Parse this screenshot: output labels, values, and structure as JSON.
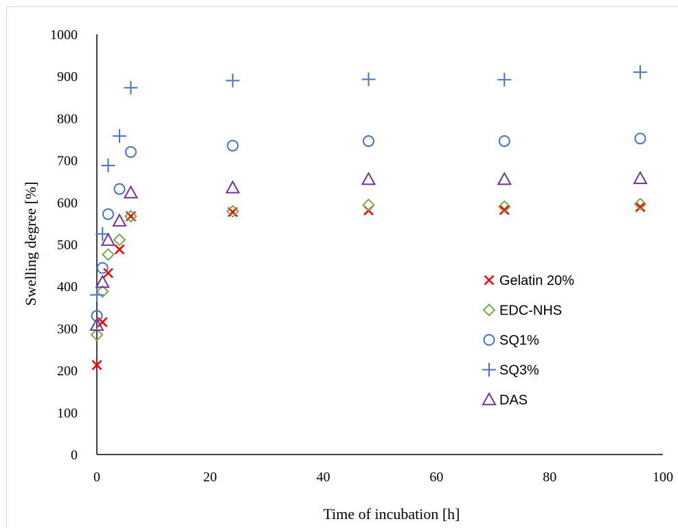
{
  "chart_data": {
    "type": "scatter",
    "title": "",
    "xlabel": "Time of incubation [h]",
    "ylabel": "Swelling degree [%]",
    "xlim": [
      0,
      100
    ],
    "ylim": [
      0,
      1000
    ],
    "x_ticks": [
      0,
      20,
      40,
      60,
      80,
      100
    ],
    "y_ticks": [
      0,
      100,
      200,
      300,
      400,
      500,
      600,
      700,
      800,
      900,
      1000
    ],
    "grid": false,
    "legend_position": "right",
    "series": [
      {
        "name": "Gelatin 20%",
        "marker": "x-cross",
        "color": "#ff0000",
        "points": [
          [
            0,
            213
          ],
          [
            1,
            315
          ],
          [
            2,
            432
          ],
          [
            4,
            488
          ],
          [
            6,
            567
          ],
          [
            24,
            577
          ],
          [
            48,
            581
          ],
          [
            72,
            582
          ],
          [
            96,
            589
          ]
        ]
      },
      {
        "name": "EDC-NHS",
        "marker": "diamond",
        "color": "#70ad47",
        "points": [
          [
            0,
            285
          ],
          [
            1,
            388
          ],
          [
            2,
            476
          ],
          [
            4,
            511
          ],
          [
            6,
            567
          ],
          [
            24,
            579
          ],
          [
            48,
            594
          ],
          [
            72,
            590
          ],
          [
            96,
            596
          ]
        ]
      },
      {
        "name": "SQ1%",
        "marker": "circle",
        "color": "#4472c4",
        "points": [
          [
            0,
            330
          ],
          [
            1,
            444
          ],
          [
            2,
            572
          ],
          [
            4,
            632
          ],
          [
            6,
            720
          ],
          [
            24,
            735
          ],
          [
            48,
            746
          ],
          [
            72,
            746
          ],
          [
            96,
            752
          ]
        ]
      },
      {
        "name": "SQ3%",
        "marker": "plus",
        "color": "#4472c4",
        "points": [
          [
            0,
            380
          ],
          [
            1,
            525
          ],
          [
            2,
            688
          ],
          [
            4,
            758
          ],
          [
            6,
            873
          ],
          [
            24,
            890
          ],
          [
            48,
            893
          ],
          [
            72,
            892
          ],
          [
            96,
            910
          ]
        ]
      },
      {
        "name": "DAS",
        "marker": "triangle",
        "color": "#7030a0",
        "points": [
          [
            0,
            308
          ],
          [
            1,
            410
          ],
          [
            2,
            510
          ],
          [
            4,
            556
          ],
          [
            6,
            623
          ],
          [
            24,
            635
          ],
          [
            48,
            655
          ],
          [
            72,
            655
          ],
          [
            96,
            657
          ]
        ]
      }
    ]
  }
}
